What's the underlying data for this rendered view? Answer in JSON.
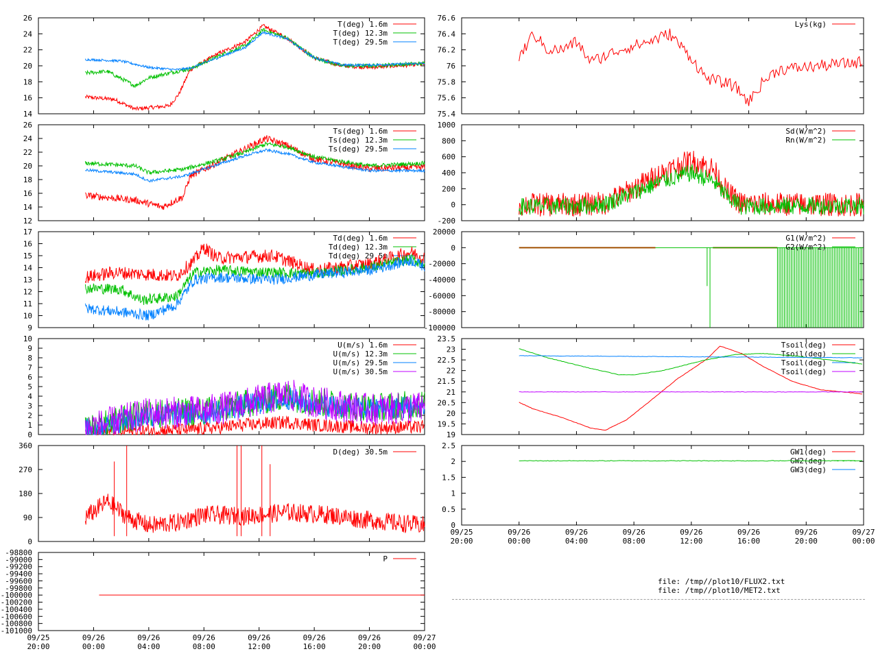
{
  "colors": {
    "red": "#ff0000",
    "green": "#00c000",
    "blue": "#0080ff",
    "purple": "#c000ff",
    "brown": "#a05000"
  },
  "time_ticks": [
    {
      "top": "09/25",
      "bottom": "20:00"
    },
    {
      "top": "09/26",
      "bottom": "00:00"
    },
    {
      "top": "09/26",
      "bottom": "04:00"
    },
    {
      "top": "09/26",
      "bottom": "08:00"
    },
    {
      "top": "09/26",
      "bottom": "12:00"
    },
    {
      "top": "09/26",
      "bottom": "16:00"
    },
    {
      "top": "09/26",
      "bottom": "20:00"
    },
    {
      "top": "09/27",
      "bottom": "00:00"
    }
  ],
  "footer": {
    "file1": "file: /tmp//plot10/FLUX2.txt",
    "file2": "file: /tmp//plot10/MET2.txt"
  },
  "chart_data": [
    {
      "type": "line",
      "id": "T",
      "ylim": [
        14,
        26
      ],
      "yticks": [
        "14",
        "16",
        "18",
        "20",
        "22",
        "24",
        "26"
      ],
      "series": [
        {
          "name": "T(deg)  1.6m",
          "color": "red"
        },
        {
          "name": "T(deg) 12.3m",
          "color": "green"
        },
        {
          "name": "T(deg) 29.5m",
          "color": "blue"
        }
      ]
    },
    {
      "type": "line",
      "id": "Ts",
      "ylim": [
        12,
        26
      ],
      "yticks": [
        "12",
        "14",
        "16",
        "18",
        "20",
        "22",
        "24",
        "26"
      ],
      "series": [
        {
          "name": "Ts(deg)  1.6m",
          "color": "red"
        },
        {
          "name": "Ts(deg) 12.3m",
          "color": "green"
        },
        {
          "name": "Ts(deg) 29.5m",
          "color": "blue"
        }
      ]
    },
    {
      "type": "line",
      "id": "Td",
      "ylim": [
        9,
        17
      ],
      "yticks": [
        "9",
        "10",
        "11",
        "12",
        "13",
        "14",
        "15",
        "16",
        "17"
      ],
      "series": [
        {
          "name": "Td(deg)  1.6m",
          "color": "red"
        },
        {
          "name": "Td(deg) 12.3m",
          "color": "green"
        },
        {
          "name": "Td(deg) 29.5m",
          "color": "blue"
        }
      ]
    },
    {
      "type": "line",
      "id": "U",
      "ylim": [
        0,
        10
      ],
      "yticks": [
        "0",
        "1",
        "2",
        "3",
        "4",
        "5",
        "6",
        "7",
        "8",
        "9",
        "10"
      ],
      "series": [
        {
          "name": "U(m/s)  1.6m",
          "color": "red"
        },
        {
          "name": "U(m/s) 12.3m",
          "color": "green"
        },
        {
          "name": "U(m/s) 29.5m",
          "color": "blue"
        },
        {
          "name": "U(m/s) 30.5m",
          "color": "purple"
        }
      ]
    },
    {
      "type": "line",
      "id": "D",
      "ylim": [
        0,
        360
      ],
      "yticks": [
        "0",
        "90",
        "180",
        "270",
        "360"
      ],
      "series": [
        {
          "name": "D(deg)  30.5m",
          "color": "red"
        }
      ]
    },
    {
      "type": "line",
      "id": "P",
      "ylim": [
        -101000,
        -98800
      ],
      "yticks": [
        "-101000",
        "-100800",
        "-100600",
        "-100400",
        "-100200",
        "-100000",
        "-99800",
        "-99600",
        "-99400",
        "-99200",
        "-99000",
        "-98800"
      ],
      "series": [
        {
          "name": "P",
          "color": "red",
          "constant": -100000
        }
      ]
    },
    {
      "type": "line",
      "id": "Lys",
      "ylim": [
        75.4,
        76.6
      ],
      "yticks": [
        "75.4",
        "75.6",
        "75.8",
        "76",
        "76.2",
        "76.4",
        "76.6"
      ],
      "series": [
        {
          "name": "Lys(kg)",
          "color": "red"
        }
      ]
    },
    {
      "type": "line",
      "id": "Rad",
      "ylim": [
        -200,
        1000
      ],
      "yticks": [
        "-200",
        "0",
        "200",
        "400",
        "600",
        "800",
        "1000"
      ],
      "series": [
        {
          "name": "Sd(W/m^2)",
          "color": "red"
        },
        {
          "name": "Rn(W/m^2)",
          "color": "green"
        }
      ]
    },
    {
      "type": "line",
      "id": "G",
      "ylim": [
        -100000,
        20000
      ],
      "yticks": [
        "-100000",
        "-80000",
        "-60000",
        "-40000",
        "-20000",
        "0",
        "20000"
      ],
      "series": [
        {
          "name": "G1(W/m^2)",
          "color": "red"
        },
        {
          "name": "G2(W/m^2)",
          "color": "green"
        }
      ]
    },
    {
      "type": "line",
      "id": "Tsoil",
      "ylim": [
        19,
        23.5
      ],
      "yticks": [
        "19",
        "19.5",
        "20",
        "20.5",
        "21",
        "21.5",
        "22",
        "22.5",
        "23",
        "23.5"
      ],
      "series": [
        {
          "name": "Tsoil(deg)",
          "color": "red"
        },
        {
          "name": "Tsoil(deg)",
          "color": "green"
        },
        {
          "name": "Tsoil(deg)",
          "color": "blue"
        },
        {
          "name": "Tsoil(deg)",
          "color": "purple"
        }
      ]
    },
    {
      "type": "line",
      "id": "GW",
      "ylim": [
        0,
        2.5
      ],
      "yticks": [
        "0",
        "0.5",
        "1",
        "1.5",
        "2",
        "2.5"
      ],
      "series": [
        {
          "name": "GW1(deg)",
          "color": "red"
        },
        {
          "name": "GW2(deg)",
          "color": "green"
        },
        {
          "name": "GW3(deg)",
          "color": "blue"
        }
      ]
    }
  ]
}
